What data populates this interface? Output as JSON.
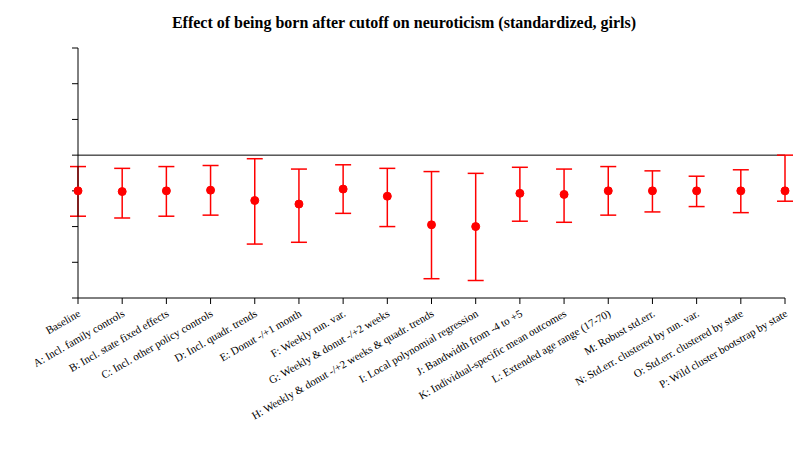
{
  "chart_data": {
    "type": "errorbar",
    "title": "Effect of being born after cutoff on neuroticism (standardized, girls)",
    "categories": [
      "Baseline",
      "A: Incl. family controls",
      "B: Incl. state fixed effects",
      "C: Incl. other policy controls",
      "D: Incl. quadr. trends",
      "E: Donut -/+1 month",
      "F: Weekly run. var.",
      "G: Weekly & donut -/+2 weeks",
      "H: Weekly & donut -/+2 weeks & quadr. trends",
      "I: Local polynomial regression",
      "J: Bandwidth from -4 to +5",
      "K: Individual-specific mean outcomes",
      "L: Extended age range (17-70)",
      "M: Robust std.err.",
      "N: Std.err. clustered by run. var.",
      "O: Std.err. clustered by state",
      "P: Wild cluster bootstrap by state"
    ],
    "values": [
      -0.1,
      -0.102,
      -0.1,
      -0.098,
      -0.127,
      -0.137,
      -0.095,
      -0.115,
      -0.195,
      -0.2,
      -0.107,
      -0.11,
      -0.1,
      -0.1,
      -0.1,
      -0.1,
      -0.1
    ],
    "ci_low": [
      -0.171,
      -0.176,
      -0.171,
      -0.168,
      -0.249,
      -0.244,
      -0.163,
      -0.2,
      -0.346,
      -0.351,
      -0.185,
      -0.188,
      -0.168,
      -0.159,
      -0.144,
      -0.161,
      -0.129
    ],
    "ci_high": [
      -0.032,
      -0.037,
      -0.032,
      -0.029,
      -0.01,
      -0.039,
      -0.027,
      -0.037,
      -0.046,
      -0.051,
      -0.034,
      -0.039,
      -0.032,
      -0.044,
      -0.059,
      -0.041,
      0.0
    ],
    "reference_line": 0,
    "color": "#ff0000",
    "marker": "circle",
    "ylim": [
      -0.4,
      0.3
    ],
    "yticks": [
      -0.4,
      -0.3,
      -0.2,
      -0.1,
      0,
      0.1,
      0.2,
      0.3
    ],
    "grid": false,
    "tick_labels": "x"
  }
}
